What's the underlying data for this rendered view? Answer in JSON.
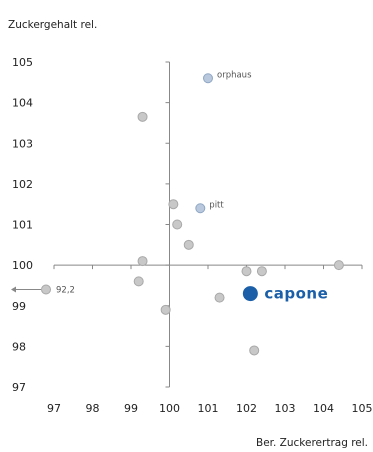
{
  "chart_data": {
    "type": "scatter",
    "ylabel": "Zuckergehalt rel.",
    "xlabel": "Ber. Zuckerertrag rel.",
    "xlim": [
      97,
      105
    ],
    "ylim": [
      97,
      105
    ],
    "x_ticks": [
      "97",
      "98",
      "99",
      "100",
      "101",
      "102",
      "103",
      "104",
      "105"
    ],
    "y_ticks": [
      "97",
      "98",
      "99",
      "100",
      "101",
      "102",
      "103",
      "104",
      "105"
    ],
    "grid": false,
    "points": [
      {
        "x": 99.3,
        "y": 103.65,
        "label": "",
        "style": "normal"
      },
      {
        "x": 100.1,
        "y": 101.5,
        "label": "",
        "style": "normal"
      },
      {
        "x": 100.2,
        "y": 101.0,
        "label": "",
        "style": "normal"
      },
      {
        "x": 100.5,
        "y": 100.5,
        "label": "",
        "style": "normal"
      },
      {
        "x": 99.3,
        "y": 100.1,
        "label": "",
        "style": "normal"
      },
      {
        "x": 99.2,
        "y": 99.6,
        "label": "",
        "style": "normal"
      },
      {
        "x": 99.9,
        "y": 98.9,
        "label": "",
        "style": "normal"
      },
      {
        "x": 101.3,
        "y": 99.2,
        "label": "",
        "style": "normal"
      },
      {
        "x": 102.0,
        "y": 99.85,
        "label": "",
        "style": "normal"
      },
      {
        "x": 102.4,
        "y": 99.85,
        "label": "",
        "style": "normal"
      },
      {
        "x": 104.4,
        "y": 100.0,
        "label": "",
        "style": "normal"
      },
      {
        "x": 102.2,
        "y": 97.9,
        "label": "",
        "style": "normal"
      },
      {
        "x": 101.0,
        "y": 104.6,
        "label": "orphaus",
        "style": "named"
      },
      {
        "x": 100.8,
        "y": 101.4,
        "label": "pitt",
        "style": "named"
      },
      {
        "x": 102.1,
        "y": 99.3,
        "label": "capone",
        "style": "highlight"
      }
    ],
    "offscale_point": {
      "x": 92.2,
      "y": 99.4,
      "label": "92,2"
    },
    "colors": {
      "point": "#c8c8c8",
      "point_stroke": "#a8a8a8",
      "named": "#b9c8dc",
      "named_stroke": "#8fa7c4",
      "highlight": "#1a5fa8",
      "axis": "#888888"
    }
  }
}
